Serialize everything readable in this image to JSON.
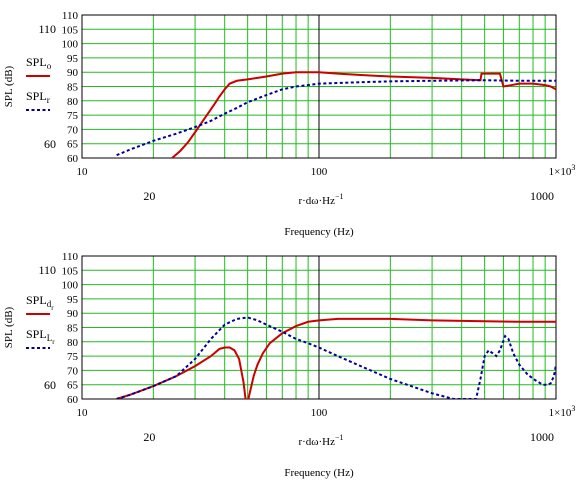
{
  "chart_data": [
    {
      "type": "line",
      "xscale": "log",
      "xlim": [
        10,
        1000
      ],
      "ylim": [
        60,
        110
      ],
      "ylabel": "SPL (dB)",
      "xlabel": "Frequency (Hz)",
      "xvar": "r·dω·Hz",
      "xvar_exp": "−1",
      "y_ticks": [
        60,
        65,
        70,
        75,
        80,
        85,
        90,
        95,
        100,
        105,
        110
      ],
      "y_big_ticks": [
        60,
        110
      ],
      "x_ticks_top": [
        {
          "text": "10",
          "x": 10
        },
        {
          "text": "100",
          "x": 100
        },
        {
          "text": "1×10",
          "x": 1000,
          "sup": "3"
        }
      ],
      "x_ticks_bottom": [
        {
          "text": "20",
          "x": 20
        },
        {
          "text": "1000",
          "x": 1000
        }
      ],
      "legend": [
        {
          "name": "SPL",
          "sub": "o",
          "color": "#cc0000",
          "style": "solid"
        },
        {
          "name": "SPL",
          "sub": "r",
          "color": "#000099",
          "style": "dotted"
        }
      ],
      "series": [
        {
          "name": "SPL_o",
          "color": "#cc0000",
          "style": "solid",
          "points": [
            [
              24,
              60
            ],
            [
              26,
              62.5
            ],
            [
              28,
              65.5
            ],
            [
              30,
              69
            ],
            [
              33,
              74
            ],
            [
              36,
              78.5
            ],
            [
              38,
              81.5
            ],
            [
              40,
              84
            ],
            [
              42,
              86
            ],
            [
              45,
              87
            ],
            [
              50,
              87.5
            ],
            [
              55,
              88
            ],
            [
              60,
              88.5
            ],
            [
              70,
              89.5
            ],
            [
              80,
              90
            ],
            [
              90,
              90
            ],
            [
              100,
              90
            ],
            [
              120,
              89.5
            ],
            [
              150,
              89
            ],
            [
              200,
              88.5
            ],
            [
              300,
              88
            ],
            [
              400,
              87.5
            ],
            [
              480,
              87.2
            ],
            [
              485,
              89.5
            ],
            [
              560,
              89.5
            ],
            [
              580,
              89.5
            ],
            [
              600,
              85
            ],
            [
              650,
              85.5
            ],
            [
              700,
              86
            ],
            [
              800,
              86
            ],
            [
              900,
              85.5
            ],
            [
              950,
              85
            ],
            [
              1000,
              84
            ]
          ]
        },
        {
          "name": "SPL_r",
          "color": "#000099",
          "style": "dotted",
          "points": [
            [
              14,
              61
            ],
            [
              16,
              63
            ],
            [
              20,
              66
            ],
            [
              25,
              68.5
            ],
            [
              30,
              70.8
            ],
            [
              35,
              73
            ],
            [
              40,
              75.5
            ],
            [
              45,
              77.5
            ],
            [
              50,
              79.5
            ],
            [
              60,
              82
            ],
            [
              70,
              84
            ],
            [
              80,
              85
            ],
            [
              90,
              85.5
            ],
            [
              100,
              86
            ],
            [
              150,
              86.5
            ],
            [
              200,
              86.8
            ],
            [
              300,
              87
            ],
            [
              500,
              87.2
            ],
            [
              700,
              87
            ],
            [
              1000,
              87
            ]
          ]
        }
      ]
    },
    {
      "type": "line",
      "xscale": "log",
      "xlim": [
        10,
        1000
      ],
      "ylim": [
        60,
        110
      ],
      "ylabel": "SPL (dB)",
      "xlabel": "Frequency (Hz)",
      "xvar": "r·dω·Hz",
      "xvar_exp": "−1",
      "y_ticks": [
        60,
        65,
        70,
        75,
        80,
        85,
        90,
        95,
        100,
        105,
        110
      ],
      "y_big_ticks": [
        60,
        110
      ],
      "x_ticks_top": [
        {
          "text": "10",
          "x": 10
        },
        {
          "text": "100",
          "x": 100
        },
        {
          "text": "1×10",
          "x": 1000,
          "sup": "3"
        }
      ],
      "x_ticks_bottom": [
        {
          "text": "20",
          "x": 20
        },
        {
          "text": "1000",
          "x": 1000
        }
      ],
      "legend": [
        {
          "name": "SPL",
          "sub": "d",
          "subsub": "r",
          "color": "#cc0000",
          "style": "solid"
        },
        {
          "name": "SPL",
          "sub": "L",
          "subsub": "r",
          "color": "#000099",
          "style": "dotted"
        }
      ],
      "series": [
        {
          "name": "SPL_d_r",
          "color": "#cc0000",
          "style": "solid",
          "points": [
            [
              14,
              60
            ],
            [
              16,
              61.5
            ],
            [
              20,
              64.5
            ],
            [
              25,
              68
            ],
            [
              30,
              71.5
            ],
            [
              35,
              75
            ],
            [
              38,
              77.5
            ],
            [
              40,
              78
            ],
            [
              42,
              78
            ],
            [
              44,
              77
            ],
            [
              46,
              74
            ],
            [
              48,
              66
            ],
            [
              49,
              60
            ],
            [
              50,
              59
            ],
            [
              51,
              62
            ],
            [
              53,
              68
            ],
            [
              55,
              72
            ],
            [
              58,
              76
            ],
            [
              62,
              79.5
            ],
            [
              70,
              83
            ],
            [
              80,
              85.5
            ],
            [
              90,
              87
            ],
            [
              100,
              87.5
            ],
            [
              120,
              88
            ],
            [
              150,
              88
            ],
            [
              200,
              88
            ],
            [
              300,
              87.5
            ],
            [
              500,
              87.2
            ],
            [
              700,
              87
            ],
            [
              1000,
              87
            ]
          ]
        },
        {
          "name": "SPL_L_r",
          "color": "#000099",
          "style": "dotted",
          "points": [
            [
              14,
              60
            ],
            [
              16,
              61.5
            ],
            [
              20,
              64.5
            ],
            [
              25,
              68
            ],
            [
              30,
              74
            ],
            [
              35,
              81
            ],
            [
              40,
              86
            ],
            [
              45,
              88
            ],
            [
              50,
              88.5
            ],
            [
              55,
              87.5
            ],
            [
              60,
              86
            ],
            [
              70,
              83.5
            ],
            [
              80,
              81
            ],
            [
              90,
              79.5
            ],
            [
              100,
              78
            ],
            [
              120,
              75
            ],
            [
              150,
              71.5
            ],
            [
              200,
              67
            ],
            [
              300,
              62
            ],
            [
              370,
              60
            ],
            [
              460,
              60
            ],
            [
              480,
              67
            ],
            [
              500,
              75
            ],
            [
              520,
              77
            ],
            [
              540,
              76
            ],
            [
              560,
              75
            ],
            [
              580,
              77
            ],
            [
              610,
              82
            ],
            [
              630,
              81
            ],
            [
              660,
              76
            ],
            [
              700,
              72
            ],
            [
              760,
              68.5
            ],
            [
              820,
              66.5
            ],
            [
              880,
              65
            ],
            [
              920,
              65
            ],
            [
              950,
              65.5
            ],
            [
              980,
              68
            ],
            [
              1000,
              72
            ]
          ]
        }
      ]
    }
  ]
}
